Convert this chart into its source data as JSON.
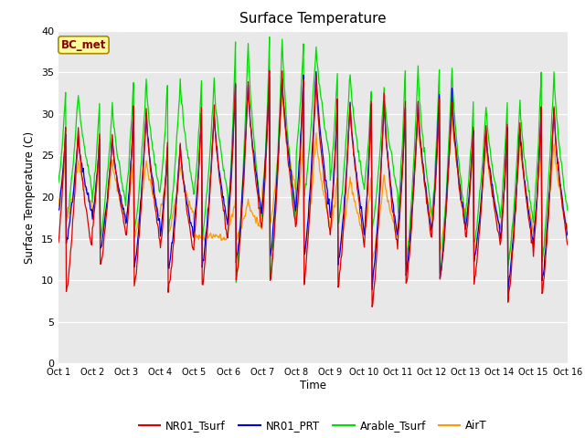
{
  "title": "Surface Temperature",
  "ylabel": "Surface Temperature (C)",
  "xlabel": "Time",
  "ylim": [
    0,
    40
  ],
  "yticks": [
    0,
    5,
    10,
    15,
    20,
    25,
    30,
    35,
    40
  ],
  "tick_labels": [
    "Oct 1",
    "Oct 2",
    "Oct 3",
    "Oct 4",
    "Oct 5",
    "Oct 6",
    "Oct 7",
    "Oct 8",
    "Oct 9",
    "Oct 10",
    "Oct 11",
    "Oct 12",
    "Oct 13",
    "Oct 14",
    "Oct 15",
    "Oct 16"
  ],
  "colors": {
    "NR01_Tsurf": "#dd0000",
    "NR01_PRT": "#0000dd",
    "Arable_Tsurf": "#00dd00",
    "AirT": "#ff9900"
  },
  "annotation_text": "BC_met",
  "annotation_bg": "#ffff99",
  "annotation_border": "#aa8800",
  "annotation_text_color": "#880000",
  "plot_bg": "#e8e8e8",
  "fig_bg": "#ffffff",
  "n_days": 15,
  "pts_per_day": 48,
  "peak_hour": 14,
  "min_hour": 5,
  "daily_data": {
    "NR01_Tsurf": {
      "peaks": [
        28.5,
        27.5,
        30.5,
        26.5,
        30.5,
        34.0,
        35.0,
        34.5,
        31.5,
        32.0,
        31.5,
        31.5,
        28.5,
        29.0,
        31.0
      ],
      "mins": [
        8.5,
        11.5,
        9.0,
        8.5,
        9.0,
        9.5,
        9.5,
        9.5,
        9.0,
        6.5,
        9.0,
        10.0,
        9.5,
        7.5,
        8.0
      ]
    },
    "NR01_PRT": {
      "peaks": [
        27.5,
        27.0,
        30.0,
        26.0,
        30.0,
        33.5,
        34.5,
        35.0,
        31.0,
        31.5,
        31.0,
        32.5,
        28.0,
        28.5,
        30.5
      ],
      "mins": [
        14.5,
        13.5,
        11.5,
        11.0,
        11.5,
        12.0,
        12.5,
        12.5,
        11.5,
        9.0,
        10.5,
        10.0,
        12.0,
        9.0,
        9.5
      ]
    },
    "Arable_Tsurf": {
      "peaks": [
        32.5,
        31.0,
        34.0,
        34.0,
        34.0,
        38.5,
        39.0,
        38.5,
        35.0,
        33.0,
        35.5,
        35.5,
        31.0,
        31.5,
        35.0
      ],
      "mins": [
        17.0,
        15.0,
        15.5,
        15.5,
        15.0,
        9.5,
        9.5,
        20.0,
        16.5,
        16.0,
        11.5,
        10.5,
        14.0,
        11.5,
        12.0
      ]
    },
    "AirT": {
      "peaks": [
        24.5,
        24.5,
        24.5,
        24.0,
        15.5,
        19.5,
        32.5,
        27.5,
        22.5,
        22.5,
        29.5,
        30.0,
        26.5,
        26.5,
        26.5
      ],
      "mins": [
        17.0,
        15.0,
        15.0,
        15.5,
        15.0,
        15.0,
        16.5,
        13.0,
        13.0,
        12.5,
        12.5,
        13.0,
        12.5,
        12.0,
        12.5
      ]
    }
  }
}
